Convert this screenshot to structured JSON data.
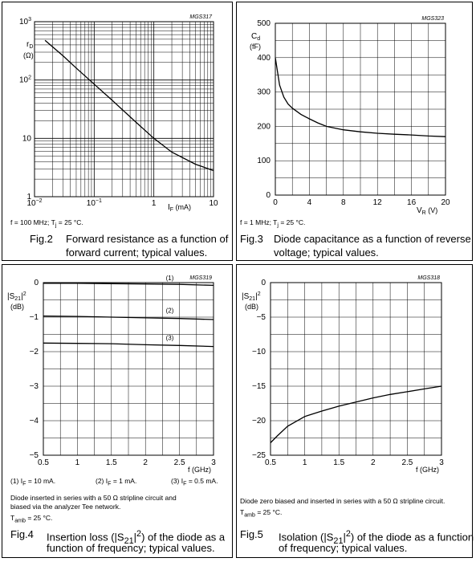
{
  "chart_data": [
    {
      "type": "line",
      "code": "MGS317",
      "scale": "log-log",
      "ylabel": "r",
      "ylabel_sub": "D",
      "yunit": "(Ω)",
      "xlabel": "I",
      "xlabel_sub": "F",
      "xunit": "(mA)",
      "xlim": [
        0.01,
        10
      ],
      "ylim": [
        1,
        1000
      ],
      "xticks": [
        {
          "value": 0.01,
          "base": "10",
          "exp": "−2"
        },
        {
          "value": 0.1,
          "base": "10",
          "exp": "−1"
        },
        {
          "value": 1,
          "base": "1",
          "exp": ""
        },
        {
          "value": 10,
          "base": "10",
          "exp": ""
        }
      ],
      "yticks": [
        {
          "value": 1,
          "base": "1",
          "exp": ""
        },
        {
          "value": 10,
          "base": "10",
          "exp": ""
        },
        {
          "value": 100,
          "base": "10",
          "exp": "2"
        },
        {
          "value": 1000,
          "base": "10",
          "exp": "3"
        }
      ],
      "series": [
        {
          "x": [
            0.015,
            0.03,
            0.05,
            0.1,
            0.2,
            0.5,
            1,
            2,
            5,
            10
          ],
          "y": [
            480,
            260,
            160,
            85,
            45,
            19,
            10,
            5.8,
            3.6,
            2.8
          ]
        }
      ],
      "grid": true,
      "conditions": "f = 100 MHz; Tj = 25 °C.",
      "conditions_parts": {
        "a": "f = 100 MHz; T",
        "sub": "j",
        "b": " = 25 °C."
      },
      "fig": "Fig.2",
      "caption": [
        "Forward resistance as a function of",
        "forward current; typical values."
      ]
    },
    {
      "type": "line",
      "code": "MGS323",
      "ylabel": "C",
      "ylabel_sub": "d",
      "yunit": "(fF)",
      "xlabel": "V",
      "xlabel_sub": "R",
      "xunit": "(V)",
      "xlim": [
        0,
        20
      ],
      "ylim": [
        0,
        500
      ],
      "xticks": [
        "0",
        "4",
        "8",
        "12",
        "16",
        "20"
      ],
      "yticks": [
        "0",
        "100",
        "200",
        "300",
        "400",
        "500"
      ],
      "series": [
        {
          "x": [
            0,
            0.5,
            1,
            1.5,
            2,
            3,
            4,
            5,
            6,
            8,
            10,
            12,
            14,
            16,
            18,
            20
          ],
          "y": [
            400,
            320,
            285,
            265,
            253,
            235,
            222,
            210,
            200,
            190,
            184,
            180,
            177,
            175,
            172,
            170
          ]
        }
      ],
      "grid": true,
      "conditions": "f = 1 MHz; Tj = 25 °C.",
      "conditions_parts": {
        "a": "f = 1 MHz; T",
        "sub": "j",
        "b": " = 25 °C."
      },
      "fig": "Fig.3",
      "caption": [
        "Diode capacitance as a function of reverse",
        "voltage; typical values."
      ]
    },
    {
      "type": "line",
      "code": "MGS319",
      "ylabel": "|S",
      "ylabel_sub": "21",
      "ylabel_end": "|",
      "ylabel_sup": "2",
      "yunit": "(dB)",
      "xlabel": "f (GHz)",
      "xlim": [
        0.5,
        3
      ],
      "ylim": [
        -5,
        0
      ],
      "xticks": [
        "0.5",
        "1",
        "1.5",
        "2",
        "2.5",
        "3"
      ],
      "yticks": [
        "−5",
        "−4",
        "−3",
        "−2",
        "−1",
        "0"
      ],
      "series": [
        {
          "name": "(1)",
          "x": [
            0.5,
            1,
            1.5,
            2,
            2.5,
            3
          ],
          "y": [
            -0.02,
            -0.02,
            -0.03,
            -0.04,
            -0.05,
            -0.08
          ]
        },
        {
          "name": "(2)",
          "x": [
            0.5,
            1,
            1.5,
            2,
            2.5,
            3
          ],
          "y": [
            -0.97,
            -0.98,
            -1.0,
            -1.02,
            -1.04,
            -1.07
          ]
        },
        {
          "name": "(3)",
          "x": [
            0.5,
            1,
            1.5,
            2,
            2.5,
            3
          ],
          "y": [
            -1.75,
            -1.76,
            -1.77,
            -1.8,
            -1.82,
            -1.85
          ]
        }
      ],
      "grid": true,
      "legend": [
        {
          "a": "(1)  I",
          "sub": "F",
          "b": " = 10 mA."
        },
        {
          "a": "(2)  I",
          "sub": "F",
          "b": " = 1 mA."
        },
        {
          "a": "(3)  I",
          "sub": "F",
          "b": " = 0.5 mA."
        }
      ],
      "conditions_lines": [
        "Diode inserted in series with a 50 Ω stripline circuit and",
        "biased via the analyzer Tee network."
      ],
      "temp": {
        "a": "T",
        "sub": "amb",
        "b": " = 25 °C."
      },
      "fig": "Fig.4",
      "caption_parts": {
        "a": "Insertion loss (|S",
        "sub": "21",
        "b": "|",
        "sup": "2",
        "c": ") of the diode as a"
      },
      "caption_line2": "function of frequency; typical values."
    },
    {
      "type": "line",
      "code": "MGS318",
      "ylabel": "|S",
      "ylabel_sub": "21",
      "ylabel_end": "|",
      "ylabel_sup": "2",
      "yunit": "(dB)",
      "xlabel": "f (GHz)",
      "xlim": [
        0.5,
        3
      ],
      "ylim": [
        -25,
        0
      ],
      "xticks": [
        "0.5",
        "1",
        "1.5",
        "2",
        "2.5",
        "3"
      ],
      "yticks": [
        "−25",
        "−20",
        "−15",
        "−10",
        "−5",
        "0"
      ],
      "series": [
        {
          "x": [
            0.5,
            0.6,
            0.75,
            1,
            1.25,
            1.5,
            1.75,
            2,
            2.25,
            2.5,
            2.75,
            3
          ],
          "y": [
            -23.2,
            -22.2,
            -20.8,
            -19.4,
            -18.6,
            -17.9,
            -17.3,
            -16.7,
            -16.2,
            -15.8,
            -15.4,
            -15
          ]
        }
      ],
      "grid": true,
      "conditions_lines": [
        "Diode zero biased and inserted in series with a 50 Ω stripline circuit."
      ],
      "temp": {
        "a": "T",
        "sub": "amb",
        "b": " = 25 °C."
      },
      "fig": "Fig.5",
      "caption_parts": {
        "a": "Isolation (|S",
        "sub": "21",
        "b": "|",
        "sup": "2",
        "c": ") of the diode as a function"
      },
      "caption_line2": "of frequency; typical values."
    }
  ]
}
